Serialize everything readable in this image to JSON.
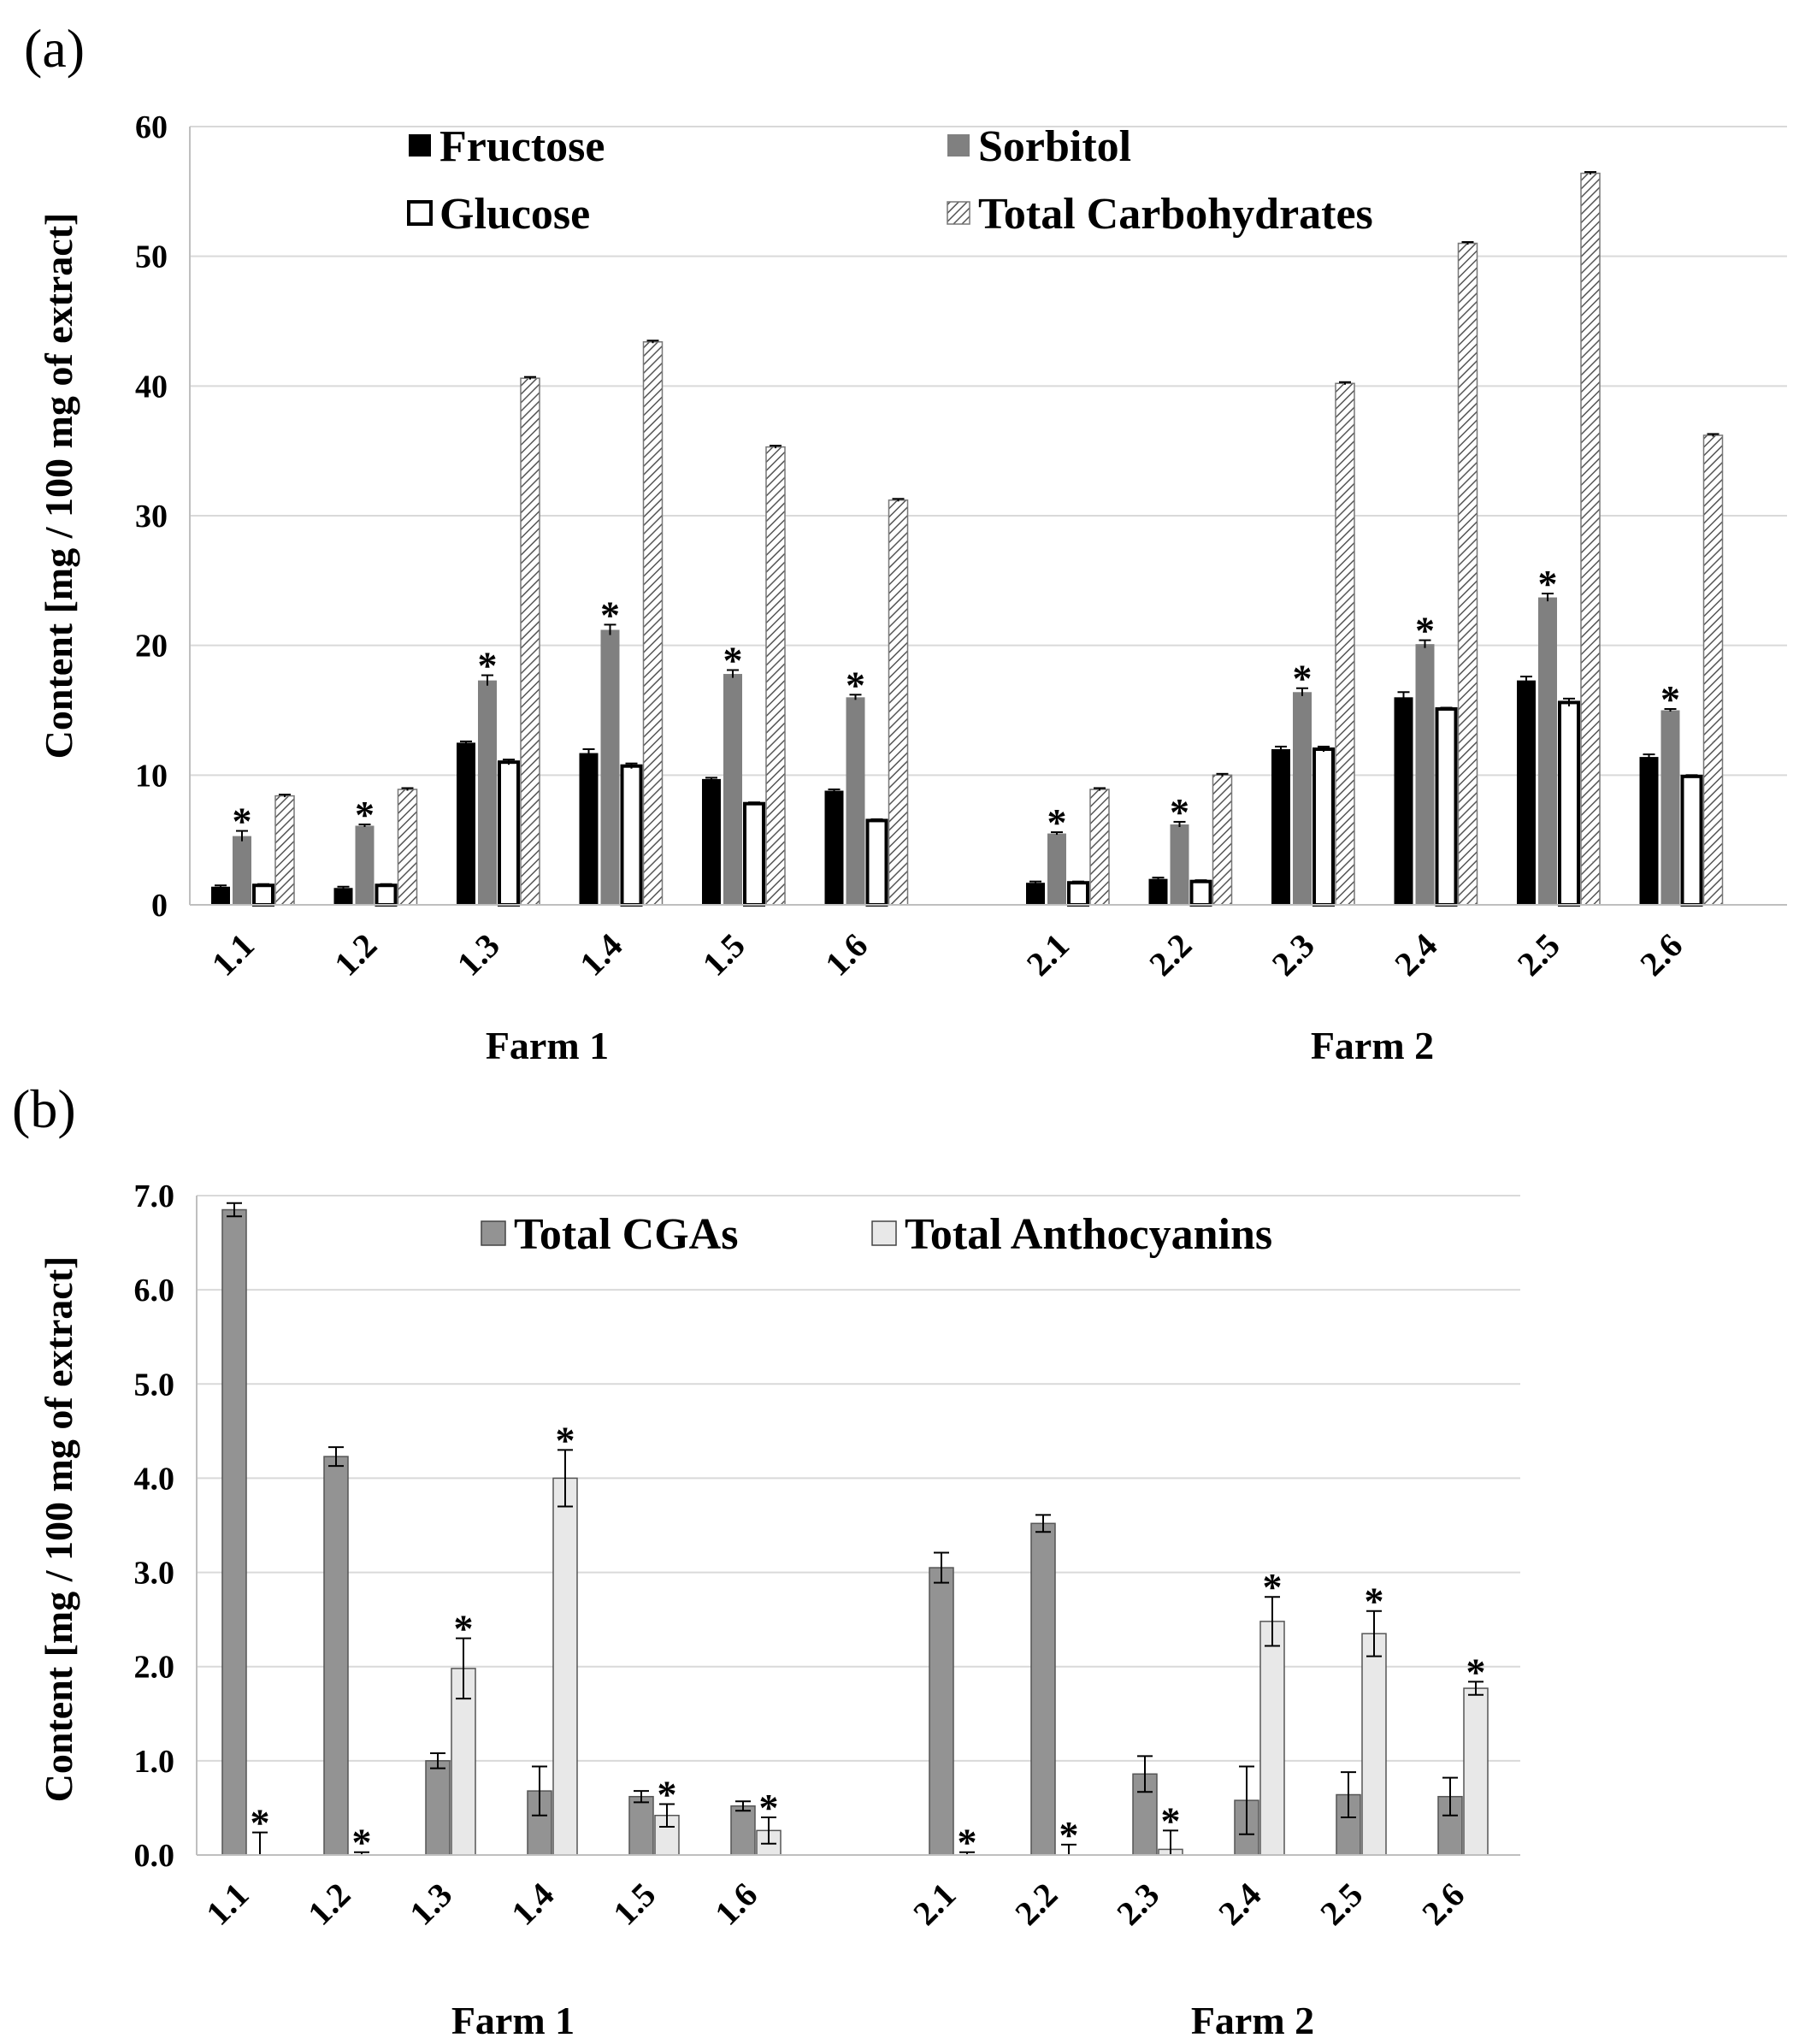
{
  "chart_data": [
    {
      "type": "bar",
      "panel_label": "(a)",
      "ylabel": "Content  [mg / 100 mg of extract]",
      "ylim": [
        0,
        60
      ],
      "yticks": [
        "0",
        "10",
        "20",
        "30",
        "40",
        "50",
        "60"
      ],
      "grid": true,
      "legend_position": "top",
      "groups": [
        {
          "name": "Farm 1",
          "categories": [
            "1.1",
            "1.2",
            "1.3",
            "1.4",
            "1.5",
            "1.6"
          ]
        },
        {
          "name": "Farm 2",
          "categories": [
            "2.1",
            "2.2",
            "2.3",
            "2.4",
            "2.5",
            "2.6"
          ]
        }
      ],
      "categories": [
        "1.1",
        "1.2",
        "1.3",
        "1.4",
        "1.5",
        "1.6",
        "2.1",
        "2.2",
        "2.3",
        "2.4",
        "2.5",
        "2.6"
      ],
      "series": [
        {
          "name": "Fructose",
          "color": "#000000",
          "pattern": "solid",
          "values": [
            1.4,
            1.3,
            12.5,
            11.7,
            9.7,
            8.8,
            1.7,
            2.0,
            12.0,
            16.0,
            17.3,
            11.4
          ],
          "errors": [
            0.1,
            0.1,
            0.1,
            0.3,
            0.1,
            0.1,
            0.1,
            0.1,
            0.2,
            0.4,
            0.3,
            0.2
          ]
        },
        {
          "name": "Sorbitol",
          "color": "#808080",
          "pattern": "solid",
          "values": [
            5.3,
            6.1,
            17.3,
            21.2,
            17.8,
            16.0,
            5.5,
            6.2,
            16.4,
            20.1,
            23.7,
            15.0
          ],
          "errors": [
            0.4,
            0.1,
            0.4,
            0.4,
            0.3,
            0.2,
            0.1,
            0.2,
            0.3,
            0.3,
            0.3,
            0.1
          ],
          "significance": [
            true,
            true,
            true,
            true,
            true,
            true,
            true,
            true,
            true,
            true,
            true,
            true
          ]
        },
        {
          "name": "Glucose",
          "color": "#ffffff",
          "pattern": "outline",
          "values": [
            1.5,
            1.5,
            11.0,
            10.7,
            7.8,
            6.5,
            1.7,
            1.8,
            12.0,
            15.1,
            15.6,
            9.9
          ],
          "errors": [
            0.1,
            0.1,
            0.2,
            0.2,
            0.1,
            0.1,
            0.1,
            0.1,
            0.2,
            0.1,
            0.3,
            0.1
          ]
        },
        {
          "name": "Total Carbohydrates",
          "color": "#9a9a9a",
          "pattern": "hatch",
          "values": [
            8.4,
            8.9,
            40.6,
            43.4,
            35.3,
            31.2,
            8.9,
            10.0,
            40.2,
            51.0,
            56.4,
            36.2
          ],
          "errors": [
            0.1,
            0.1,
            0.1,
            0.1,
            0.1,
            0.1,
            0.1,
            0.1,
            0.1,
            0.1,
            0.1,
            0.1
          ]
        }
      ]
    },
    {
      "type": "bar",
      "panel_label": "(b)",
      "ylabel": "Content  [mg / 100 mg of extract]",
      "ylim": [
        0,
        7
      ],
      "yticks": [
        "0.0",
        "1.0",
        "2.0",
        "3.0",
        "4.0",
        "5.0",
        "6.0",
        "7.0"
      ],
      "grid": true,
      "legend_position": "top",
      "groups": [
        {
          "name": "Farm 1",
          "categories": [
            "1.1",
            "1.2",
            "1.3",
            "1.4",
            "1.5",
            "1.6"
          ]
        },
        {
          "name": "Farm 2",
          "categories": [
            "2.1",
            "2.2",
            "2.3",
            "2.4",
            "2.5",
            "2.6"
          ]
        }
      ],
      "categories": [
        "1.1",
        "1.2",
        "1.3",
        "1.4",
        "1.5",
        "1.6",
        "2.1",
        "2.2",
        "2.3",
        "2.4",
        "2.5",
        "2.6"
      ],
      "series": [
        {
          "name": "Total CGAs",
          "color": "#939393",
          "pattern": "solid",
          "values": [
            6.85,
            4.23,
            1.0,
            0.68,
            0.62,
            0.52,
            3.05,
            3.52,
            0.86,
            0.58,
            0.64,
            0.62
          ],
          "errors": [
            0.07,
            0.1,
            0.08,
            0.26,
            0.06,
            0.05,
            0.16,
            0.09,
            0.19,
            0.36,
            0.24,
            0.2
          ]
        },
        {
          "name": "Total Anthocyanins",
          "color": "#e8e8e8",
          "pattern": "solid",
          "values": [
            0.0,
            0.0,
            1.98,
            4.0,
            0.42,
            0.26,
            0.0,
            0.0,
            0.06,
            2.48,
            2.35,
            1.77
          ],
          "errors": [
            0.24,
            0.03,
            0.32,
            0.3,
            0.12,
            0.14,
            0.03,
            0.11,
            0.2,
            0.26,
            0.24,
            0.07
          ],
          "significance": [
            true,
            true,
            true,
            true,
            true,
            true,
            true,
            true,
            true,
            true,
            true,
            true
          ]
        }
      ]
    }
  ]
}
